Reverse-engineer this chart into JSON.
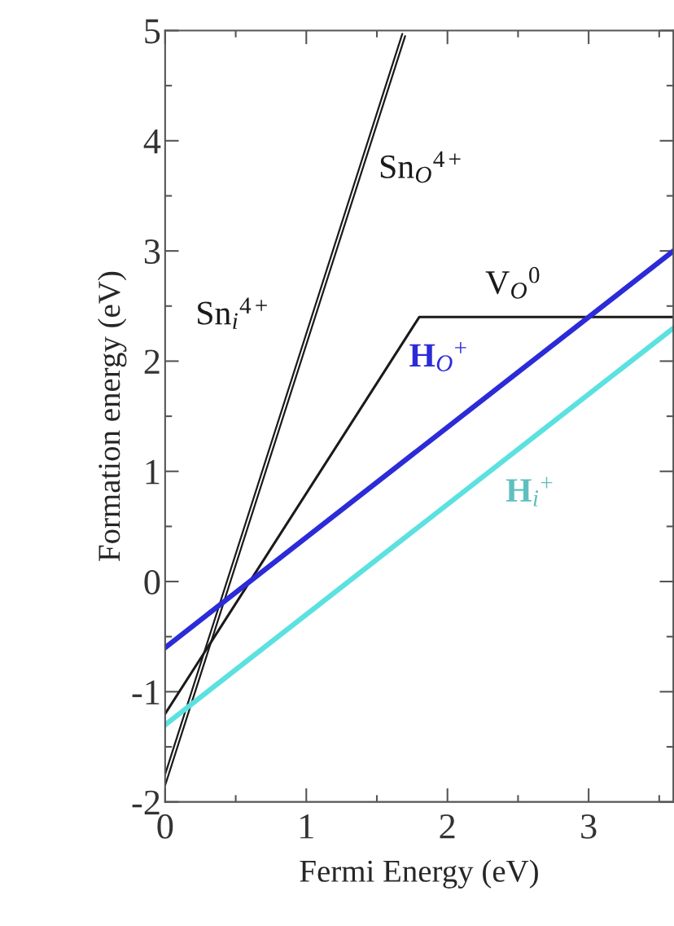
{
  "chart_data": {
    "type": "line",
    "xlabel": "Fermi Energy (eV)",
    "ylabel": "Formation energy (eV)",
    "xlim": [
      0,
      3.6
    ],
    "ylim": [
      -2,
      5
    ],
    "xticks": [
      0,
      1,
      2,
      3
    ],
    "yticks": [
      -2,
      -1,
      0,
      1,
      2,
      3,
      4,
      5
    ],
    "grid": false,
    "marker": "none",
    "line_style": "solid",
    "series": [
      {
        "name": "Sn$_{i}$$^{4+}$",
        "color": "#1a1a1a",
        "x": [
          0,
          1.7
        ],
        "values": [
          -1.85,
          4.95
        ]
      },
      {
        "name": "Sn$_{O}$$^{4+}$",
        "color": "#1a1a1a",
        "x": [
          0,
          1.68
        ],
        "values": [
          -1.75,
          4.97
        ]
      },
      {
        "name": "V$_{O}$$^{0}$",
        "color": "#1a1a1a",
        "x": [
          0,
          1.8,
          3.6
        ],
        "values": [
          -1.2,
          2.4,
          2.4
        ]
      },
      {
        "name": "H$_{O}$$^{+}$",
        "color": "#2b2bd8",
        "x": [
          0,
          3.6
        ],
        "values": [
          -0.6,
          3.0
        ]
      },
      {
        "name": "H$_{i}$$^{+}$",
        "color": "#5ce1e1",
        "x": [
          0,
          3.6
        ],
        "values": [
          -1.3,
          2.3
        ]
      }
    ]
  }
}
